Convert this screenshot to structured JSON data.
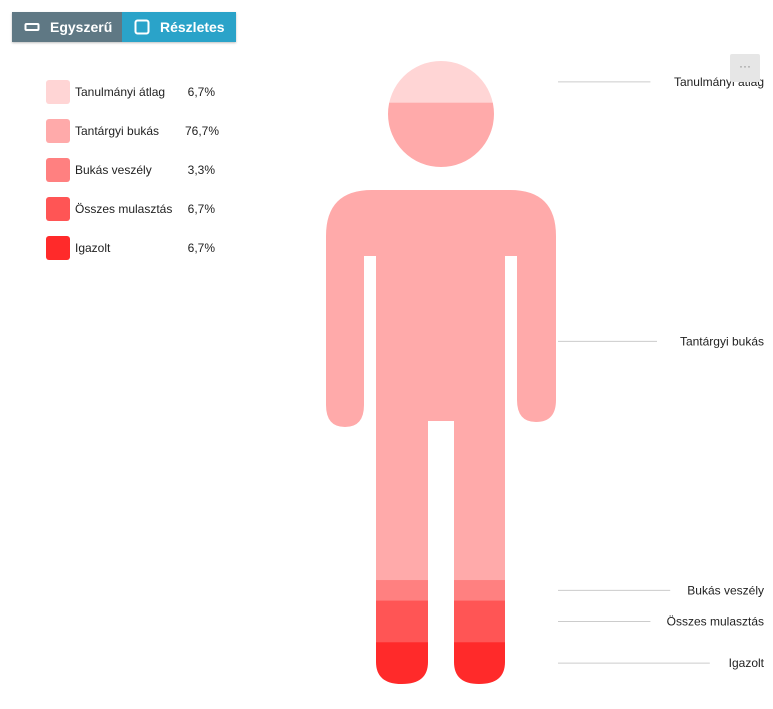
{
  "toggle": {
    "simple_label": "Egyszerű",
    "detailed_label": "Részletes"
  },
  "menu": {
    "label": "···"
  },
  "colors": {
    "toggle_simple_bg": "#5f7884",
    "toggle_detailed_bg": "#2aa3c9"
  },
  "chart_data": {
    "type": "pictorial-stack",
    "series": [
      {
        "name": "Tanulmányi átlag",
        "value": 6.7,
        "display": "6,7%",
        "color": "#ffd5d5"
      },
      {
        "name": "Tantárgyi bukás",
        "value": 76.7,
        "display": "76,7%",
        "color": "#ffaaaa"
      },
      {
        "name": "Bukás veszély",
        "value": 3.3,
        "display": "3,3%",
        "color": "#ff8080"
      },
      {
        "name": "Összes mulasztás",
        "value": 6.7,
        "display": "6,7%",
        "color": "#ff5555"
      },
      {
        "name": "Igazolt",
        "value": 6.7,
        "display": "6,7%",
        "color": "#ff2a2a"
      }
    ],
    "legend_position": "left"
  }
}
